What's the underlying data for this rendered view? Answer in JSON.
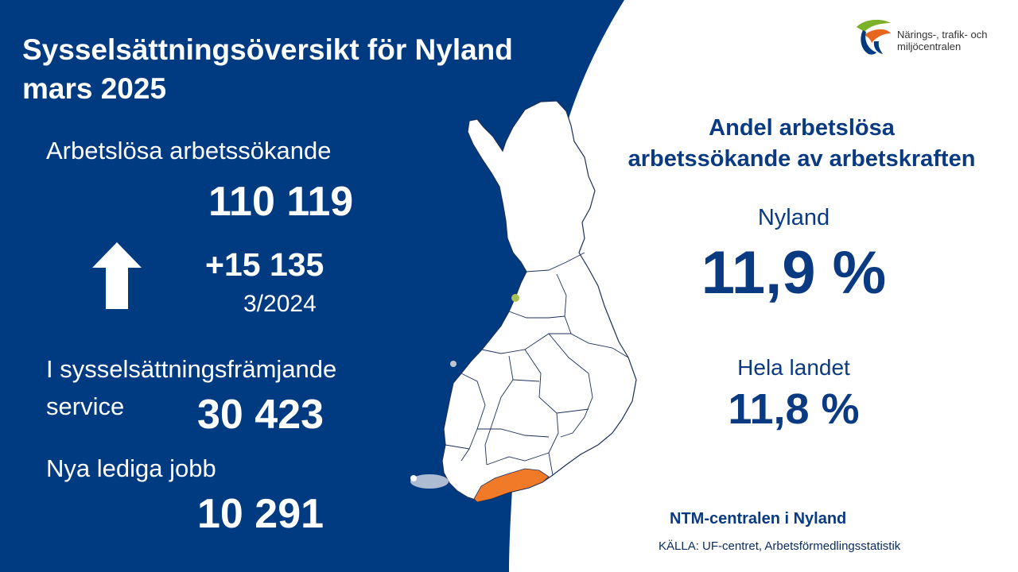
{
  "header": {
    "title_line1": "Sysselsättningsöversikt för Nyland",
    "title_line2": "mars 2025"
  },
  "logo": {
    "line1": "Närings-, trafik- och",
    "line2": "miljöcentralen",
    "icon": "ntm-leaf-logo-icon"
  },
  "left": {
    "unemployed": {
      "label": "Arbetslösa arbetssökande",
      "value": "110 119"
    },
    "change": {
      "value": "+15 135",
      "period": "3/2024",
      "icon": "arrow-up-icon",
      "direction": "up"
    },
    "services": {
      "label_line1": "I sysselsättningsfrämjande",
      "label_line2": "service",
      "value": "30 423"
    },
    "vacancies": {
      "label": "Nya lediga jobb",
      "value": "10 291"
    }
  },
  "right": {
    "heading_line1": "Andel arbetslösa",
    "heading_line2": "arbetssökande av arbetskraften",
    "region": {
      "label": "Nyland",
      "value": "11,9 %"
    },
    "country": {
      "label": "Hela landet",
      "value": "11,8 %"
    }
  },
  "footer": {
    "org": "NTM-centralen i Nyland",
    "source": "KÄLLA: UF-centret, Arbetsförmedlingsstatistik"
  },
  "map": {
    "icon": "finland-regions-map",
    "highlight_region": "Nyland"
  },
  "colors": {
    "primary_blue": "#003a80",
    "highlight_orange": "#f07a28",
    "logo_green": "#7ab02a",
    "logo_orange": "#e8651e"
  }
}
